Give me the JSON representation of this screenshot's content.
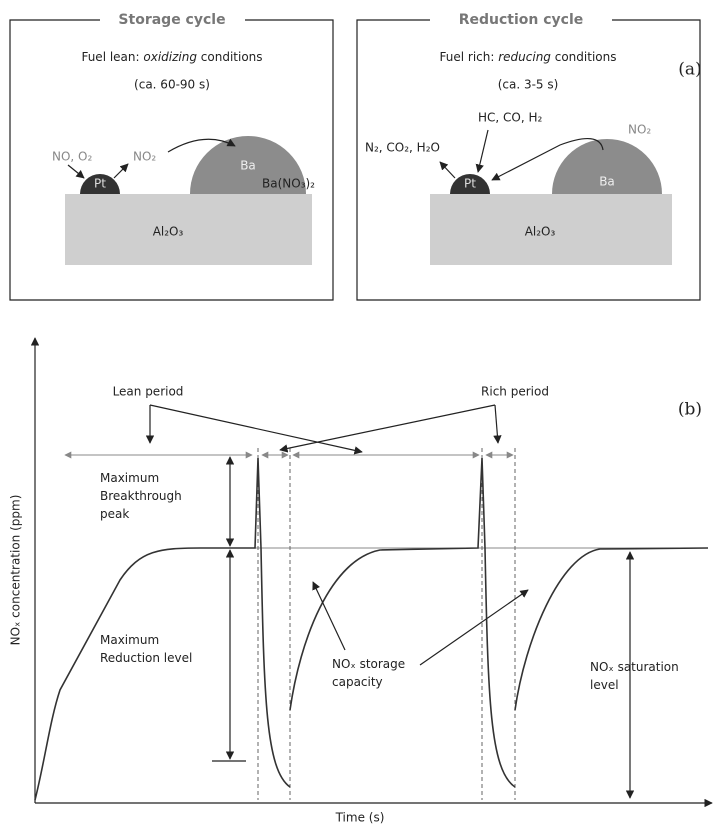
{
  "panel_a": {
    "label": "(a)",
    "storage": {
      "title": "Storage cycle",
      "condition": [
        "Fuel lean: ",
        "oxidizing",
        " conditions"
      ],
      "duration": "(ca. 60-90 s)",
      "reactants": "NO, O₂",
      "intermediate": "NO₂",
      "product": "Ba(NO₃)₂",
      "pt": "Pt",
      "ba": "Ba",
      "support": "Al₂O₃"
    },
    "reduction": {
      "title": "Reduction cycle",
      "condition": [
        "Fuel rich: ",
        "reducing",
        " conditions"
      ],
      "duration": "(ca. 3-5 s)",
      "reductants": "HC, CO, H₂",
      "released": "NO₂",
      "products": "N₂, CO₂, H₂O",
      "pt": "Pt",
      "ba": "Ba",
      "support": "Al₂O₃"
    }
  },
  "panel_b": {
    "label": "(b)",
    "y_axis": "NOₓ concentration (ppm)",
    "x_axis": "Time (s)",
    "lean_period": "Lean period",
    "rich_period": "Rich period",
    "breakthrough": [
      "Maximum",
      "Breakthrough",
      "peak"
    ],
    "reduction_level": [
      "Maximum",
      "Reduction level"
    ],
    "storage_capacity": [
      "NOₓ storage",
      "capacity"
    ],
    "saturation": [
      "NOₓ saturation",
      "level"
    ]
  }
}
